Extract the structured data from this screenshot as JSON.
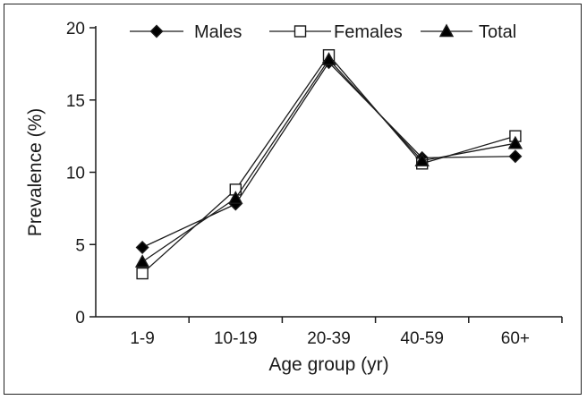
{
  "chart_data": {
    "type": "line",
    "title": "",
    "xlabel": "Age group (yr)",
    "ylabel": "Prevalence (%)",
    "categories": [
      "1-9",
      "10-19",
      "20-39",
      "40-59",
      "60+"
    ],
    "ylim": [
      0,
      20
    ],
    "yticks": [
      "0",
      "5",
      "10",
      "15",
      "20"
    ],
    "grid": false,
    "legend_position": "top",
    "series": [
      {
        "name": "Males",
        "marker": "diamond-filled",
        "values": [
          4.8,
          7.8,
          17.6,
          11.0,
          11.1
        ]
      },
      {
        "name": "Females",
        "marker": "square-open",
        "values": [
          3.0,
          8.8,
          18.1,
          10.6,
          12.5
        ]
      },
      {
        "name": "Total",
        "marker": "triangle-filled",
        "values": [
          3.8,
          8.2,
          17.8,
          10.8,
          12.0
        ]
      }
    ],
    "colors": {
      "line": "#1a1a1a",
      "marker_fill": "#000000",
      "open_marker_fill": "#ffffff"
    }
  }
}
